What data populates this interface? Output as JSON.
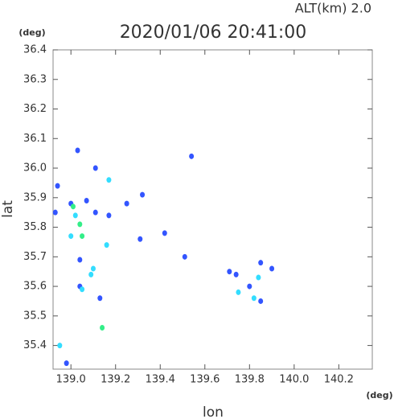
{
  "chart_data": {
    "type": "scatter",
    "title": "2020/01/06 20:41:00",
    "subtitle": "ALT(km)  2.0",
    "x_label": "lon",
    "y_label": "lat",
    "x_unit": "(deg)",
    "y_unit": "(deg)",
    "xlim": [
      138.92,
      140.35
    ],
    "ylim": [
      35.32,
      36.4
    ],
    "xticks": [
      {
        "value": 139,
        "label": "139.0"
      },
      139.2,
      139.4,
      139.6,
      139.8,
      {
        "value": 140,
        "label": "140.0"
      },
      140.2
    ],
    "yticks": [
      {
        "value": 35.4,
        "label": "35.4"
      },
      35.5,
      35.6,
      35.7,
      35.8,
      35.9,
      {
        "value": 36,
        "label": "36.0"
      },
      36.1,
      36.2,
      36.3,
      36.4
    ],
    "series": [
      {
        "color": "#3355ff",
        "x": [
          139.03,
          139.11,
          138.94,
          139.0,
          139.07,
          139.11,
          139.17,
          139.04,
          139.04,
          139.13,
          138.98,
          139.32,
          139.25,
          139.31,
          139.42,
          139.51,
          139.54,
          138.93,
          139.71,
          139.74,
          139.85,
          139.9,
          139.85,
          139.8
        ],
        "values": [
          36.06,
          36.0,
          35.94,
          35.88,
          35.89,
          35.85,
          35.84,
          35.69,
          35.6,
          35.56,
          35.34,
          35.91,
          35.88,
          35.76,
          35.78,
          35.7,
          36.04,
          35.85,
          35.65,
          35.64,
          35.68,
          35.66,
          35.55,
          35.6
        ]
      },
      {
        "color": "#33ddff",
        "x": [
          139.02,
          139.0,
          139.16,
          139.1,
          139.09,
          139.05,
          138.95,
          139.17,
          139.75,
          139.82,
          139.84
        ],
        "values": [
          35.84,
          35.77,
          35.74,
          35.66,
          35.64,
          35.59,
          35.4,
          35.96,
          35.58,
          35.56,
          35.63
        ]
      },
      {
        "color": "#33ee88",
        "x": [
          139.01,
          139.04,
          139.05,
          139.14
        ],
        "values": [
          35.87,
          35.81,
          35.77,
          35.46
        ]
      }
    ]
  }
}
